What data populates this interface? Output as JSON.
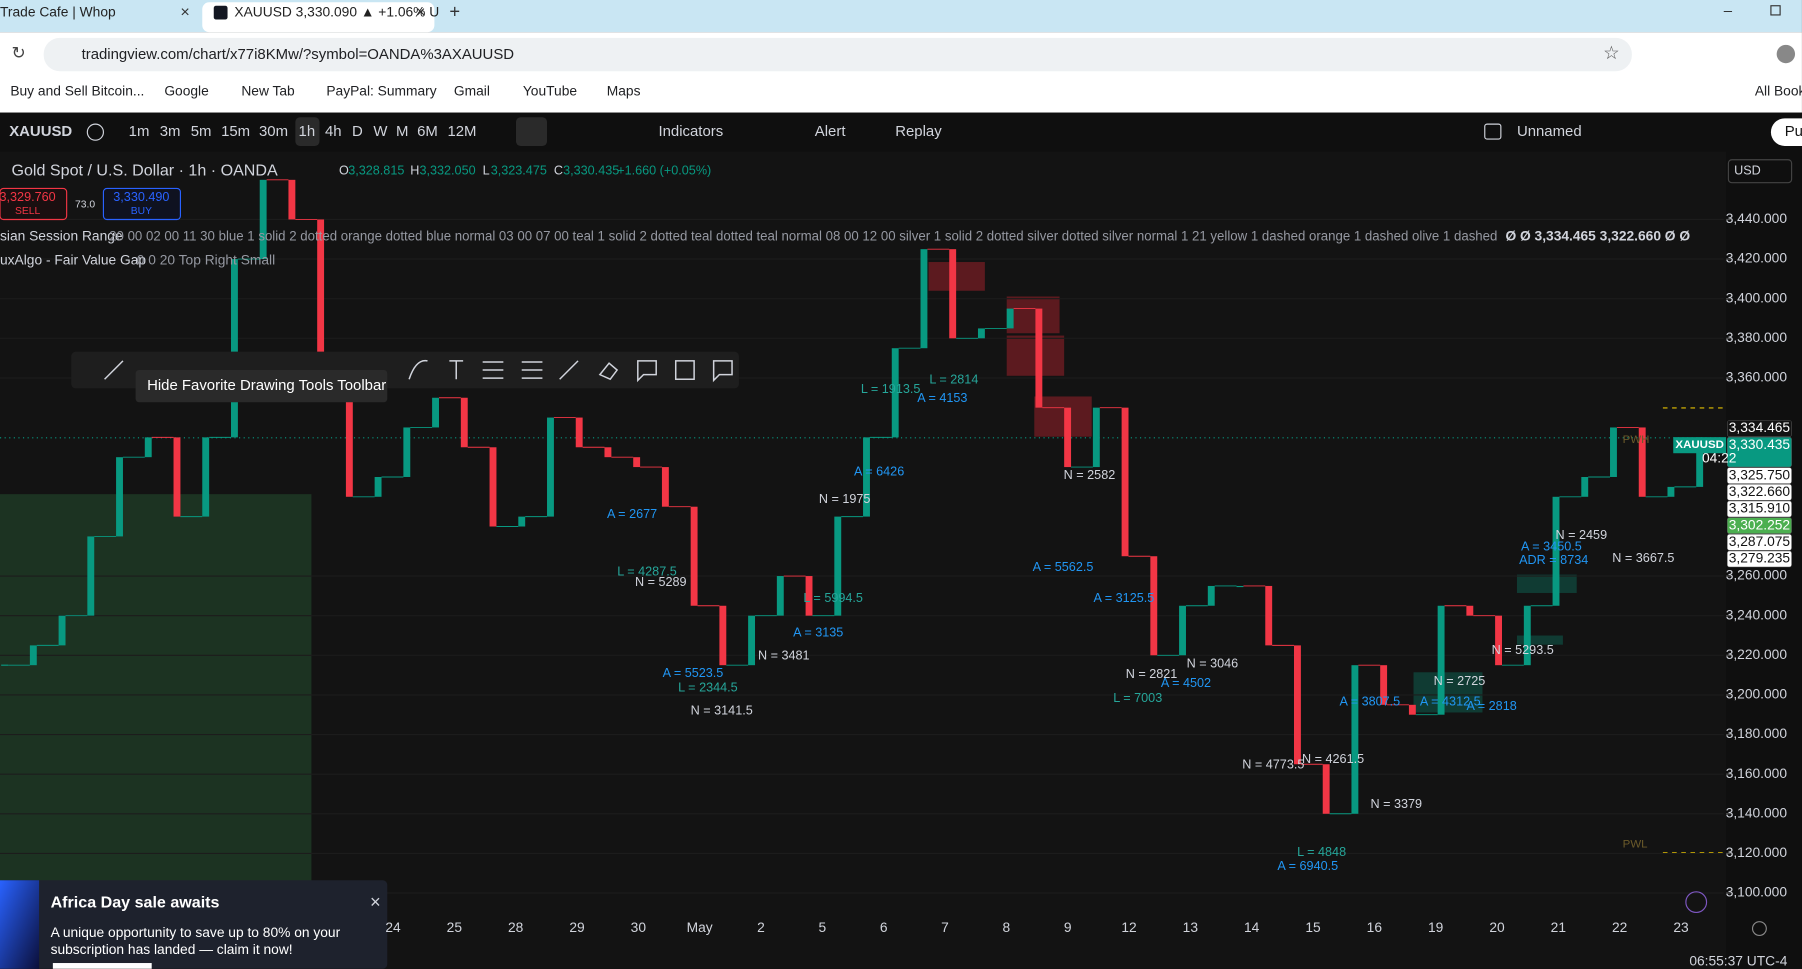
{
  "browser": {
    "tabs": [
      "Trade Cafe | Whop",
      "XAUUSD 3,330.090 ▲ +1.06% U"
    ],
    "url": "tradingview.com/chart/x77i8KMw/?symbol=OANDA%3AXAUUSD",
    "bookmarks": [
      "Buy and Sell Bitcoin...",
      "Google",
      "New Tab",
      "PayPal: Summary",
      "Gmail",
      "YouTube",
      "Maps"
    ],
    "all_bookmarks": "All Bookm"
  },
  "toolbar": {
    "symbol": "XAUUSD",
    "intervals": [
      "1m",
      "3m",
      "5m",
      "15m",
      "30m",
      "1h",
      "4h",
      "D",
      "W",
      "M",
      "6M",
      "12M"
    ],
    "indicators": "Indicators",
    "alert": "Alert",
    "replay": "Replay",
    "layout": "Unnamed",
    "publish": "Pul"
  },
  "legend": {
    "ohlc": [
      "O",
      "3,328.815",
      "H",
      "3,332.050",
      "L",
      "3,323.475",
      "C",
      "3,330.435",
      "+1.660 (+0.05%)"
    ],
    "sell_price": "3,329.760",
    "sell": "SELL",
    "spread": "73.0",
    "buy_price": "3,330.490",
    "buy": "BUY",
    "session_name": "sian Session Range",
    "session_params": "20 00 02 00 11 30 blue 1 solid 2 dotted orange dotted blue normal 03 00 07 00 teal 1 solid 2 dotted teal dotted teal normal 08 00 12 00 silver 1 solid 2 dotted silver dotted silver normal 1 21 yellow 1 dashed orange 1 dashed olive 1 dashed",
    "session_values": "Ø Ø 3,334.465 3,322.660 Ø Ø",
    "fvg_name": "uxAlgo - Fair Value Gap",
    "fvg_params": "0 0 20 Top Right Small"
  },
  "drawing_tooltip": "Hide Favorite Drawing Tools Toolbar",
  "currency": "USD",
  "popup": {
    "title": "Africa Day sale awaits",
    "body": [
      "A unique opportunity to save up to 80% on your",
      "subscription has landed — claim it now!"
    ]
  },
  "clock": "06:55:37 UTC-4",
  "chart_data": {
    "type": "candlestick",
    "title": "Gold Spot / U.S. Dollar · 1h · OANDA",
    "categories": [
      "24",
      "25",
      "28",
      "29",
      "30",
      "May",
      "2",
      "5",
      "6",
      "7",
      "8",
      "9",
      "12",
      "13",
      "14",
      "15",
      "16",
      "19",
      "20",
      "21",
      "22",
      "23"
    ],
    "closes": [
      3215,
      3225,
      3240,
      3280,
      3320,
      3330,
      3290,
      3330,
      3420,
      3460,
      3440,
      3370,
      3300,
      3310,
      3335,
      3350,
      3325,
      3285,
      3290,
      3340,
      3325,
      3320,
      3315,
      3295,
      3245,
      3215,
      3240,
      3260,
      3240,
      3290,
      3330,
      3375,
      3425,
      3380,
      3385,
      3395,
      3345,
      3315,
      3345,
      3270,
      3220,
      3245,
      3255,
      3255,
      3225,
      3165,
      3140,
      3215,
      3195,
      3190,
      3245,
      3240,
      3215,
      3245,
      3300,
      3310,
      3335,
      3300,
      3305,
      3330
    ],
    "up_color": "#089981",
    "down_color": "#f23645",
    "ylim": [
      3089.6,
      3474.2
    ],
    "yticks": [
      {
        "value": 3440,
        "label": "3,440.000"
      },
      {
        "value": 3420,
        "label": "3,420.000"
      },
      {
        "value": 3400,
        "label": "3,400.000"
      },
      {
        "value": 3380,
        "label": "3,380.000"
      },
      {
        "value": 3360,
        "label": "3,360.000"
      },
      {
        "value": 3260,
        "label": "3,260.000"
      },
      {
        "value": 3240,
        "label": "3,240.000"
      },
      {
        "value": 3220,
        "label": "3,220.000"
      },
      {
        "value": 3200,
        "label": "3,200.000"
      },
      {
        "value": 3180,
        "label": "3,180.000"
      },
      {
        "value": 3160,
        "label": "3,160.000"
      },
      {
        "value": 3140,
        "label": "3,140.000"
      },
      {
        "value": 3120,
        "label": "3,120.000"
      },
      {
        "value": 3100,
        "label": "3,100.000"
      }
    ],
    "grid": true,
    "price_tags": [
      {
        "value": 3334.465,
        "label": "3,334.465",
        "color": "#131313",
        "text_color": "#ffffff"
      },
      {
        "value": 3330.435,
        "label": "3,330.435",
        "color": "#089981",
        "text_color": "#ffffff"
      },
      {
        "value": 3325.75,
        "label": "3,325.750",
        "color": "#ffffff",
        "text_color": "#131313"
      },
      {
        "value": 3322.66,
        "label": "3,322.660",
        "color": "#ffffff",
        "text_color": "#131313"
      },
      {
        "value": 3315.91,
        "label": "3,315.910",
        "color": "#ffffff",
        "text_color": "#131313"
      },
      {
        "value": 3302.252,
        "label": "3,302.252",
        "color": "#4caf50",
        "text_color": "#ffffff"
      },
      {
        "value": 3287.075,
        "label": "3,287.075",
        "color": "#ffffff",
        "text_color": "#131313"
      },
      {
        "value": 3279.235,
        "label": "3,279.235",
        "color": "#ffffff",
        "text_color": "#131313"
      }
    ],
    "symbol_tag": "XAUUSD",
    "countdown": "04:22",
    "markers": [
      "PWH",
      "PWL"
    ],
    "annotations": [
      {
        "text": "A = 2677",
        "color": "#2196f3"
      },
      {
        "text": "L = 4287.5",
        "color": "#26a69a"
      },
      {
        "text": "N = 5289",
        "color": "#d1d4dc"
      },
      {
        "text": "A = 5523.5",
        "color": "#2196f3"
      },
      {
        "text": "L = 2344.5",
        "color": "#26a69a"
      },
      {
        "text": "N = 3141.5",
        "color": "#d1d4dc"
      },
      {
        "text": "N = 3481",
        "color": "#d1d4dc"
      },
      {
        "text": "A = 3135",
        "color": "#2196f3"
      },
      {
        "text": "L = 5994.5",
        "color": "#26a69a"
      },
      {
        "text": "N = 1975",
        "color": "#d1d4dc"
      },
      {
        "text": "A = 6426",
        "color": "#2196f3"
      },
      {
        "text": "L = 1913.5",
        "color": "#26a69a"
      },
      {
        "text": "L = 2814",
        "color": "#26a69a"
      },
      {
        "text": "A = 4153",
        "color": "#2196f3"
      },
      {
        "text": "N = 2582",
        "color": "#d1d4dc"
      },
      {
        "text": "A = 5562.5",
        "color": "#2196f3"
      },
      {
        "text": "A = 3125.5",
        "color": "#2196f3"
      },
      {
        "text": "N = 2821",
        "color": "#d1d4dc"
      },
      {
        "text": "N = 3046",
        "color": "#d1d4dc"
      },
      {
        "text": "A = 4502",
        "color": "#2196f3"
      },
      {
        "text": "L = 7003",
        "color": "#26a69a"
      },
      {
        "text": "N = 4773.5",
        "color": "#d1d4dc"
      },
      {
        "text": "N = 4261.5",
        "color": "#d1d4dc"
      },
      {
        "text": "L = 4848",
        "color": "#26a69a"
      },
      {
        "text": "A = 6940.5",
        "color": "#2196f3"
      },
      {
        "text": "N = 3379",
        "color": "#d1d4dc"
      },
      {
        "text": "A = 3807.5",
        "color": "#2196f3"
      },
      {
        "text": "A = 4312.5",
        "color": "#2196f3"
      },
      {
        "text": "N = 2725",
        "color": "#d1d4dc"
      },
      {
        "text": "A = 2818",
        "color": "#2196f3"
      },
      {
        "text": "N = 5293.5",
        "color": "#d1d4dc"
      },
      {
        "text": "N = 2459",
        "color": "#d1d4dc"
      },
      {
        "text": "A = 3450.5",
        "color": "#2196f3"
      },
      {
        "text": "ADR = 8734",
        "color": "#2196f3"
      },
      {
        "text": "N = 3667.5",
        "color": "#d1d4dc"
      }
    ]
  }
}
